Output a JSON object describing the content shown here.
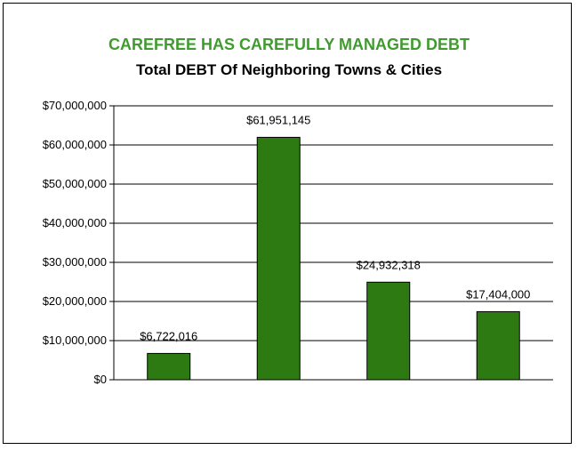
{
  "chart_data": {
    "type": "bar",
    "title": "CAREFREE HAS CAREFULLY MANAGED DEBT",
    "subtitle": "Total DEBT Of Neighboring Towns & Cities",
    "categories": [
      "",
      "",
      "",
      ""
    ],
    "values": [
      6722016,
      61951145,
      24932318,
      17404000
    ],
    "data_labels": [
      "$6,722,016",
      "$61,951,145",
      "$24,932,318",
      "$17,404,000"
    ],
    "yticks": [
      0,
      10000000,
      20000000,
      30000000,
      40000000,
      50000000,
      60000000,
      70000000
    ],
    "ytick_labels": [
      "$0",
      "$10,000,000",
      "$20,000,000",
      "$30,000,000",
      "$40,000,000",
      "$50,000,000",
      "$60,000,000",
      "$70,000,000"
    ],
    "ylim": [
      0,
      70000000
    ],
    "grid": true,
    "legend": "none",
    "xlabel": "",
    "ylabel": ""
  },
  "colors": {
    "title": "#3f9b2e",
    "subtitle": "#000000",
    "bar": "#2e7a12",
    "bar_border": "#000000",
    "grid": "#000000"
  }
}
